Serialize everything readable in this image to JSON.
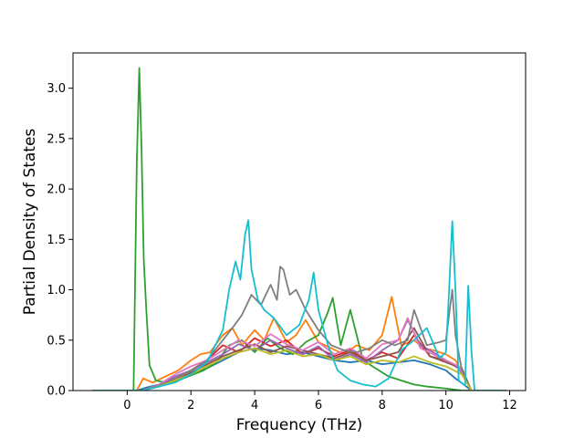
{
  "chart_data": {
    "type": "line",
    "title": "",
    "xlabel": "Frequency (THz)",
    "ylabel": "Partial Density of States",
    "xlim": [
      -1.7,
      12.5
    ],
    "ylim": [
      0.0,
      3.35
    ],
    "xticks": [
      0,
      2,
      4,
      6,
      8,
      10,
      12
    ],
    "xtick_labels": [
      "0",
      "2",
      "4",
      "6",
      "8",
      "10",
      "12"
    ],
    "yticks": [
      0.0,
      0.5,
      1.0,
      1.5,
      2.0,
      2.5,
      3.0
    ],
    "ytick_labels": [
      "0.0",
      "0.5",
      "1.0",
      "1.5",
      "2.0",
      "2.5",
      "3.0"
    ],
    "grid": false,
    "legend": "none",
    "series": [
      {
        "color": "#1f77b4",
        "x": [
          -1.1,
          0.3,
          0.6,
          1.0,
          1.5,
          2.0,
          2.5,
          3.0,
          3.5,
          4.0,
          4.5,
          5.0,
          5.5,
          6.0,
          6.5,
          7.0,
          7.5,
          8.0,
          8.5,
          9.0,
          9.5,
          10.0,
          10.3,
          10.6,
          10.8,
          11.9
        ],
        "y": [
          0,
          0,
          0.03,
          0.06,
          0.1,
          0.16,
          0.22,
          0.3,
          0.38,
          0.42,
          0.4,
          0.36,
          0.38,
          0.34,
          0.3,
          0.28,
          0.3,
          0.26,
          0.28,
          0.3,
          0.26,
          0.2,
          0.12,
          0.05,
          0,
          0
        ]
      },
      {
        "color": "#ff7f0e",
        "x": [
          -1.1,
          0.3,
          0.5,
          0.8,
          1.2,
          1.6,
          2.0,
          2.3,
          2.6,
          3.0,
          3.3,
          3.6,
          4.0,
          4.3,
          4.6,
          5.0,
          5.3,
          5.6,
          6.0,
          6.4,
          6.8,
          7.2,
          7.6,
          8.0,
          8.3,
          8.6,
          9.0,
          9.3,
          9.6,
          10.0,
          10.3,
          10.5,
          10.8,
          11.9
        ],
        "y": [
          0,
          0,
          0.12,
          0.08,
          0.14,
          0.2,
          0.3,
          0.36,
          0.38,
          0.55,
          0.62,
          0.45,
          0.6,
          0.5,
          0.72,
          0.48,
          0.55,
          0.7,
          0.48,
          0.42,
          0.36,
          0.45,
          0.4,
          0.55,
          0.93,
          0.45,
          0.5,
          0.42,
          0.4,
          0.36,
          0.3,
          0.18,
          0,
          0
        ]
      },
      {
        "color": "#2ca02c",
        "x": [
          -1.1,
          0.2,
          0.3,
          0.38,
          0.45,
          0.52,
          0.6,
          0.7,
          0.9,
          1.2,
          1.6,
          2.0,
          2.4,
          2.8,
          3.2,
          3.6,
          4.0,
          4.4,
          4.8,
          5.2,
          5.6,
          6.0,
          6.3,
          6.45,
          6.7,
          7.0,
          7.4,
          7.8,
          8.2,
          8.6,
          9.0,
          9.4,
          10.0,
          10.5,
          11.9
        ],
        "y": [
          0,
          0,
          2.25,
          3.2,
          2.4,
          1.3,
          0.8,
          0.25,
          0.1,
          0.08,
          0.1,
          0.15,
          0.2,
          0.28,
          0.45,
          0.5,
          0.38,
          0.52,
          0.42,
          0.36,
          0.48,
          0.55,
          0.78,
          0.92,
          0.45,
          0.8,
          0.3,
          0.22,
          0.14,
          0.1,
          0.06,
          0.04,
          0.02,
          0,
          0
        ]
      },
      {
        "color": "#d62728",
        "x": [
          -1.1,
          0.5,
          1.0,
          1.5,
          2.0,
          2.5,
          3.0,
          3.5,
          4.0,
          4.5,
          5.0,
          5.5,
          6.0,
          6.5,
          7.0,
          7.5,
          8.0,
          8.5,
          9.0,
          9.5,
          10.0,
          10.5,
          10.8,
          11.9
        ],
        "y": [
          0,
          0,
          0.05,
          0.12,
          0.2,
          0.3,
          0.45,
          0.38,
          0.52,
          0.44,
          0.5,
          0.36,
          0.42,
          0.34,
          0.4,
          0.3,
          0.38,
          0.32,
          0.55,
          0.34,
          0.3,
          0.2,
          0,
          0
        ]
      },
      {
        "color": "#9467bd",
        "x": [
          -1.1,
          0.5,
          1.0,
          1.5,
          2.0,
          2.5,
          3.0,
          3.5,
          4.0,
          4.5,
          5.0,
          5.5,
          6.0,
          6.5,
          7.0,
          7.5,
          8.0,
          8.5,
          8.8,
          9.2,
          9.6,
          10.0,
          10.4,
          10.8,
          11.9
        ],
        "y": [
          0,
          0,
          0.06,
          0.14,
          0.2,
          0.28,
          0.36,
          0.46,
          0.4,
          0.5,
          0.42,
          0.36,
          0.44,
          0.3,
          0.36,
          0.28,
          0.4,
          0.5,
          0.7,
          0.45,
          0.38,
          0.3,
          0.22,
          0,
          0
        ]
      },
      {
        "color": "#8c564b",
        "x": [
          -1.1,
          0.5,
          1.0,
          1.5,
          2.0,
          2.5,
          3.0,
          3.5,
          4.0,
          4.5,
          5.0,
          5.5,
          6.0,
          6.5,
          7.0,
          7.5,
          8.0,
          8.5,
          9.0,
          9.5,
          10.0,
          10.5,
          10.8,
          11.9
        ],
        "y": [
          0,
          0,
          0.05,
          0.1,
          0.18,
          0.26,
          0.34,
          0.4,
          0.46,
          0.38,
          0.44,
          0.4,
          0.36,
          0.32,
          0.38,
          0.3,
          0.34,
          0.38,
          0.62,
          0.34,
          0.28,
          0.22,
          0,
          0
        ]
      },
      {
        "color": "#e377c2",
        "x": [
          -1.1,
          0.5,
          1.0,
          1.5,
          2.0,
          2.5,
          3.0,
          3.5,
          4.0,
          4.5,
          5.0,
          5.5,
          6.0,
          6.5,
          7.0,
          7.5,
          8.0,
          8.5,
          8.8,
          9.2,
          9.6,
          10.0,
          10.4,
          10.8,
          11.9
        ],
        "y": [
          0,
          0,
          0.06,
          0.16,
          0.24,
          0.3,
          0.4,
          0.5,
          0.44,
          0.56,
          0.46,
          0.4,
          0.48,
          0.36,
          0.42,
          0.32,
          0.46,
          0.5,
          0.72,
          0.42,
          0.36,
          0.3,
          0.24,
          0,
          0
        ]
      },
      {
        "color": "#7f7f7f",
        "x": [
          -1.1,
          0.5,
          1.0,
          1.5,
          2.0,
          2.5,
          3.0,
          3.3,
          3.6,
          3.9,
          4.2,
          4.5,
          4.7,
          4.8,
          4.9,
          5.1,
          5.3,
          5.6,
          6.0,
          6.4,
          6.8,
          7.2,
          7.6,
          8.0,
          8.4,
          8.8,
          9.0,
          9.4,
          9.8,
          10.0,
          10.2,
          10.3,
          10.5,
          10.8,
          11.9
        ],
        "y": [
          0,
          0,
          0.05,
          0.12,
          0.2,
          0.3,
          0.5,
          0.62,
          0.75,
          0.95,
          0.85,
          1.05,
          0.9,
          1.23,
          1.2,
          0.95,
          1.0,
          0.8,
          0.6,
          0.45,
          0.4,
          0.38,
          0.42,
          0.5,
          0.45,
          0.5,
          0.8,
          0.45,
          0.48,
          0.5,
          1.0,
          0.55,
          0.2,
          0,
          0
        ]
      },
      {
        "color": "#bcbd22",
        "x": [
          -1.1,
          0.5,
          1.0,
          1.5,
          2.0,
          2.5,
          3.0,
          3.5,
          4.0,
          4.5,
          5.0,
          5.5,
          6.0,
          6.5,
          7.0,
          7.5,
          8.0,
          8.5,
          9.0,
          9.5,
          10.0,
          10.5,
          10.8,
          11.9
        ],
        "y": [
          0,
          0,
          0.04,
          0.1,
          0.16,
          0.24,
          0.32,
          0.38,
          0.42,
          0.36,
          0.4,
          0.34,
          0.36,
          0.3,
          0.34,
          0.26,
          0.3,
          0.28,
          0.34,
          0.28,
          0.24,
          0.16,
          0,
          0
        ]
      },
      {
        "color": "#17becf",
        "x": [
          -1.1,
          0.5,
          1.0,
          1.5,
          2.0,
          2.5,
          3.0,
          3.2,
          3.4,
          3.55,
          3.7,
          3.8,
          3.9,
          4.1,
          4.3,
          4.6,
          5.0,
          5.4,
          5.7,
          5.85,
          6.0,
          6.3,
          6.6,
          7.0,
          7.4,
          7.8,
          8.2,
          8.6,
          9.0,
          9.4,
          9.8,
          10.0,
          10.1,
          10.2,
          10.3,
          10.4,
          10.6,
          10.7,
          10.8,
          10.9,
          11.9
        ],
        "y": [
          0,
          0,
          0.04,
          0.08,
          0.16,
          0.28,
          0.6,
          1.0,
          1.28,
          1.1,
          1.55,
          1.69,
          1.2,
          0.9,
          0.8,
          0.72,
          0.55,
          0.65,
          0.9,
          1.17,
          0.8,
          0.45,
          0.2,
          0.1,
          0.06,
          0.04,
          0.12,
          0.4,
          0.5,
          0.62,
          0.32,
          0.38,
          1.0,
          1.68,
          1.0,
          0.1,
          0.05,
          1.04,
          0.4,
          0,
          0
        ]
      }
    ]
  }
}
